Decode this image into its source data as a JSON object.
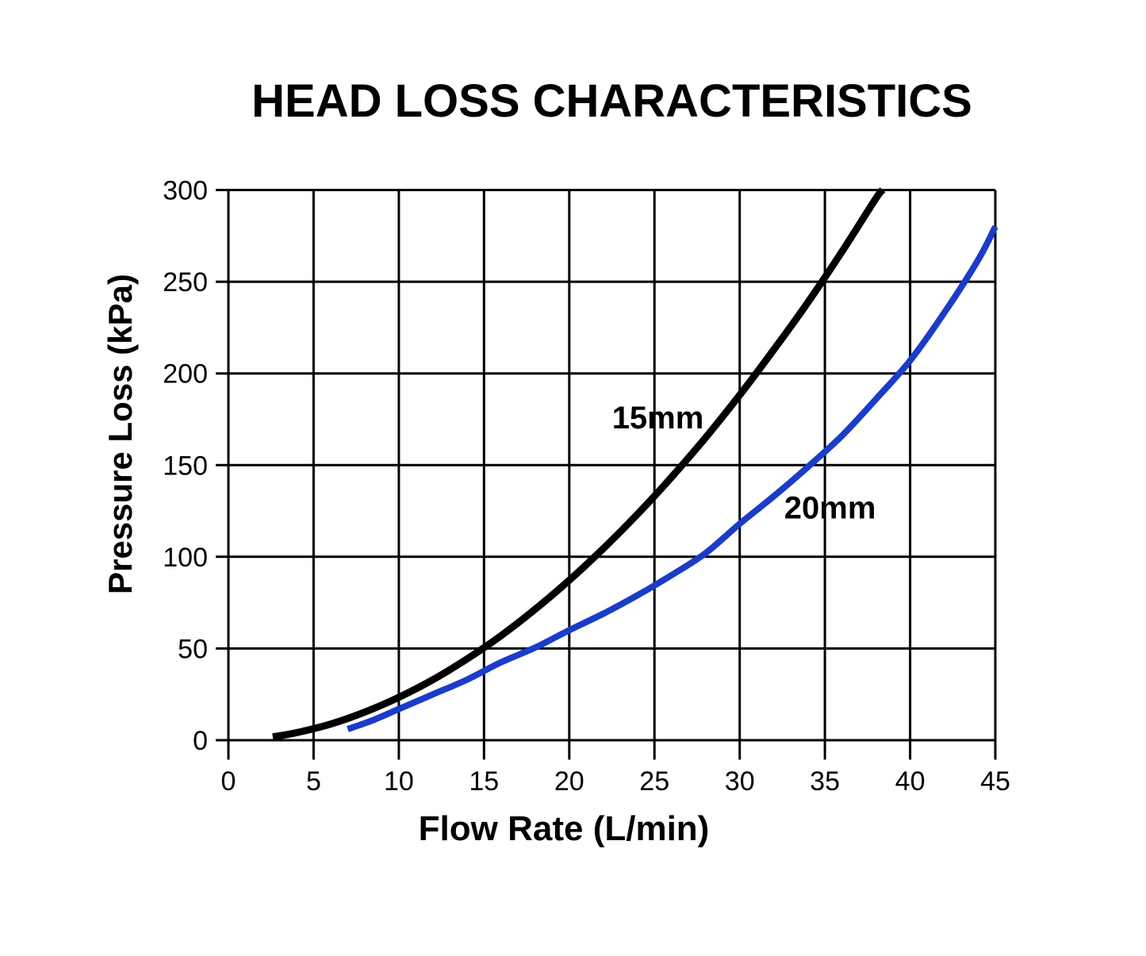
{
  "page": {
    "title": "HEAD LOSS CHARACTERISTICS"
  },
  "chart_data": {
    "type": "line",
    "title": "HEAD LOSS CHARACTERISTICS",
    "xlabel": "Flow Rate (L/min)",
    "ylabel": "Pressure Loss (kPa)",
    "xlim": [
      0,
      45
    ],
    "ylim": [
      0,
      300
    ],
    "x_ticks": [
      0,
      5,
      10,
      15,
      20,
      25,
      30,
      35,
      40,
      45
    ],
    "y_ticks": [
      0,
      50,
      100,
      150,
      200,
      250,
      300
    ],
    "grid": true,
    "legend_position": "inline-annotations",
    "colors": {
      "line_15mm": "#000000",
      "line_20mm": "#1a3cc8",
      "grid": "#000000"
    },
    "series": [
      {
        "name": "15mm",
        "color": "#000000",
        "stroke_width": 9,
        "label": {
          "text": "15mm",
          "x": 25.2,
          "y": 176
        },
        "points": [
          [
            2.6,
            1.8
          ],
          [
            4,
            4.1
          ],
          [
            6,
            8.8
          ],
          [
            8,
            15.3
          ],
          [
            10,
            23.4
          ],
          [
            12,
            33
          ],
          [
            14,
            44.3
          ],
          [
            16,
            57
          ],
          [
            18,
            71.4
          ],
          [
            20,
            87.2
          ],
          [
            22,
            104.5
          ],
          [
            24,
            123.2
          ],
          [
            26,
            143.4
          ],
          [
            28,
            165
          ],
          [
            30,
            188.2
          ],
          [
            32,
            212.9
          ],
          [
            34,
            238.7
          ],
          [
            36,
            266.4
          ],
          [
            38,
            295.5
          ],
          [
            38.4,
            300
          ]
        ]
      },
      {
        "name": "20mm",
        "color": "#1a3cc8",
        "stroke_width": 8,
        "label": {
          "text": "20mm",
          "x": 35.3,
          "y": 127
        },
        "points": [
          [
            7,
            6
          ],
          [
            8.5,
            11
          ],
          [
            10,
            17
          ],
          [
            12,
            25
          ],
          [
            14,
            33
          ],
          [
            16,
            42.5
          ],
          [
            18,
            50.5
          ],
          [
            20,
            60
          ],
          [
            22,
            69
          ],
          [
            24,
            79
          ],
          [
            26,
            90
          ],
          [
            28,
            102
          ],
          [
            30,
            118
          ],
          [
            32,
            133
          ],
          [
            34,
            149
          ],
          [
            36,
            166
          ],
          [
            38,
            186
          ],
          [
            40,
            207
          ],
          [
            42,
            233
          ],
          [
            44,
            262
          ],
          [
            45,
            280
          ]
        ]
      }
    ]
  }
}
